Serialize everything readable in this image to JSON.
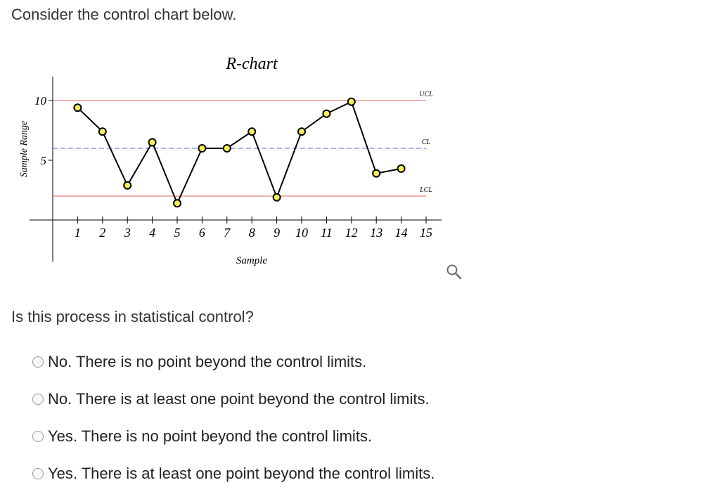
{
  "prompt": "Consider the control chart below.",
  "question": "Is this process in statistical control?",
  "options": [
    "No. There is no point beyond the control limits.",
    "No. There is at least one point beyond the control limits.",
    "Yes. There is no point beyond the control limits.",
    "Yes. There is at least one point beyond the control limits."
  ],
  "icons": {
    "zoom": "magnifier-icon"
  },
  "chart_data": {
    "type": "line",
    "title": "R-chart",
    "xlabel": "Sample",
    "ylabel": "Sample Range",
    "x": [
      1,
      2,
      3,
      4,
      5,
      6,
      7,
      8,
      9,
      10,
      11,
      12,
      13,
      14
    ],
    "x_ticks": [
      "1",
      "2",
      "3",
      "4",
      "5",
      "6",
      "7",
      "8",
      "9",
      "10",
      "11",
      "12",
      "13",
      "14",
      "15"
    ],
    "y_ticks": [
      "5",
      "10"
    ],
    "values": [
      9.4,
      7.4,
      2.9,
      6.5,
      1.4,
      6.0,
      6.0,
      7.4,
      1.9,
      7.4,
      8.9,
      9.9,
      3.9,
      4.3
    ],
    "xlim": [
      0,
      15
    ],
    "ylim": [
      -3.5,
      12
    ],
    "ucl": {
      "label": "UCL",
      "value": 10,
      "color": "#e06060"
    },
    "cl": {
      "label": "CL",
      "value": 6,
      "color": "#5a6fe0"
    },
    "lcl": {
      "label": "LCL",
      "value": 2,
      "color": "#e06060"
    },
    "marker_fill": "#f5f05a",
    "line_color": "#000000"
  }
}
